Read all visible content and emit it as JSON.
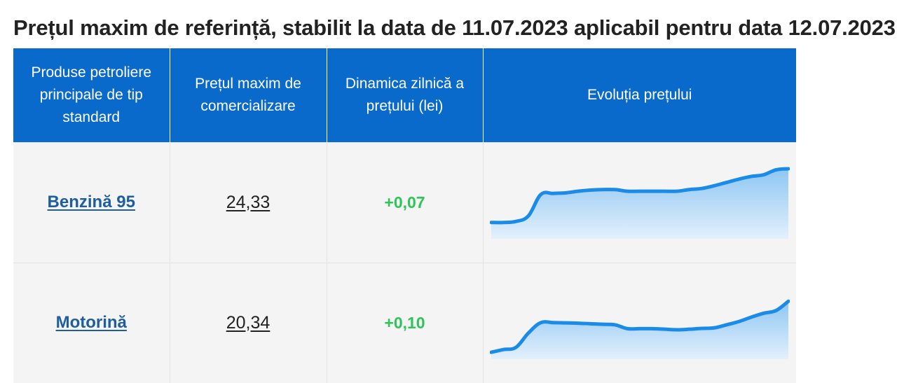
{
  "page": {
    "title": "Prețul maxim de referință, stabilit la data de 11.07.2023 aplicabil pentru data 12.07.2023"
  },
  "table": {
    "headers": [
      "Produse petroliere principale de tip standard",
      "Prețul maxim de comercializare",
      "Dinamica zilnică a prețului (lei)",
      "Evoluția prețului"
    ],
    "rows": [
      {
        "product": "Benzină 95",
        "price_int": "24",
        "price_sep": ",",
        "price_dec": "33",
        "change": "+0,07",
        "trend": [
          10.2,
          10.2,
          10.4,
          11.4,
          15.3,
          15.5,
          15.6,
          15.9,
          16.1,
          16.2,
          16.2,
          15.9,
          15.9,
          15.9,
          15.9,
          15.9,
          16.2,
          16.4,
          16.9,
          17.5,
          18.1,
          18.6,
          18.9,
          19.8,
          20.0
        ]
      },
      {
        "product": "Motorină",
        "price_int": "20",
        "price_sep": ",",
        "price_dec": "34",
        "change": "+0,10",
        "trend": [
          8.5,
          9.0,
          9.4,
          12.0,
          13.9,
          13.9,
          13.85,
          13.8,
          13.7,
          13.6,
          13.5,
          12.8,
          12.8,
          12.8,
          12.7,
          12.6,
          12.7,
          12.85,
          12.95,
          13.5,
          14.1,
          14.9,
          15.6,
          16.1,
          17.8
        ]
      }
    ]
  },
  "colors": {
    "header_bg": "#0A6ACB",
    "line": "#1A8BE8",
    "fill_top": "#8EC6F3",
    "fill_bottom": "#E3F0FC",
    "positive": "#2EC458",
    "link": "#1F5E9E"
  }
}
